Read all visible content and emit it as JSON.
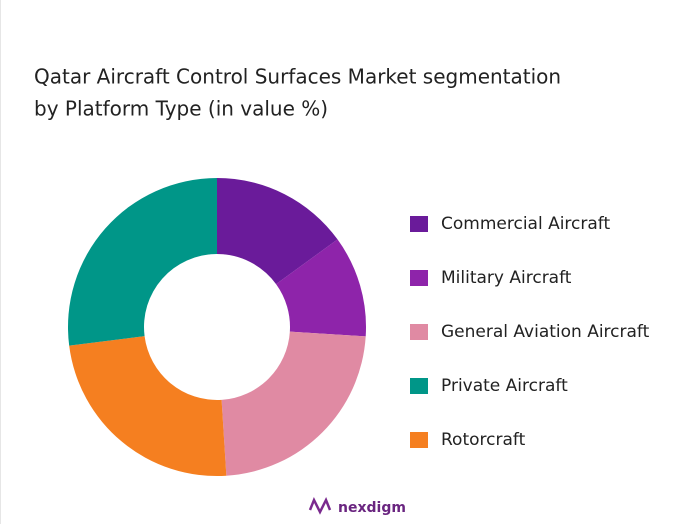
{
  "chart_data": {
    "type": "donut",
    "title": [
      "Qatar Aircraft Control Surfaces Market segmentation",
      "by Platform Type (in value %)"
    ],
    "categories": [
      "Commercial Aircraft",
      "Military Aircraft",
      "General Aviation Aircraft",
      "Private Aircraft",
      "Rotorcraft"
    ],
    "values": [
      15,
      11,
      23,
      27,
      24
    ],
    "colors": [
      "#6a1b9a",
      "#8e24aa",
      "#e08aa3",
      "#009688",
      "#f57f20"
    ],
    "legend": "right"
  },
  "footer": {
    "brand": "nexdigm"
  }
}
